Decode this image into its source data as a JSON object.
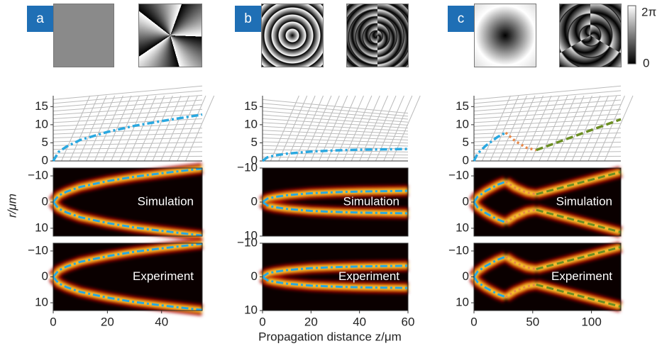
{
  "figure": {
    "panel_labels": [
      "a",
      "b",
      "c"
    ],
    "colorbar_labels": [
      "2π",
      "0"
    ],
    "ylabel": "r/μm",
    "xlabel": "Propagation distance z/μm"
  },
  "chart_data": [
    {
      "type": "line",
      "xlim": [
        0,
        55
      ],
      "xticks": [
        0,
        20,
        40
      ],
      "ylim": [
        0,
        18
      ],
      "yticks": [
        0,
        5,
        10,
        15
      ],
      "series": [
        {
          "color": "#2aa8e0",
          "x": [
            0,
            2,
            5,
            10,
            20,
            30,
            40,
            55
          ],
          "values": [
            0,
            2.5,
            4,
            5.8,
            8,
            9.7,
            11,
            12.8
          ]
        }
      ],
      "heatmaps": [
        {
          "annotation": "Simulation",
          "ylim": [
            -13,
            13
          ],
          "yticks": [
            {
              "value": -10,
              "label": "−10"
            },
            0,
            10
          ]
        },
        {
          "annotation": "Experiment",
          "ylim": [
            -13,
            13
          ],
          "yticks": [
            {
              "value": -10,
              "label": "−10"
            },
            0,
            10
          ]
        }
      ]
    },
    {
      "type": "line",
      "xlim": [
        0,
        60
      ],
      "xticks": [
        0,
        20,
        40,
        60
      ],
      "ylim": [
        0,
        18
      ],
      "yticks": [
        0,
        5,
        10,
        15
      ],
      "series": [
        {
          "color": "#2aa8e0",
          "x": [
            0,
            2,
            5,
            10,
            20,
            30,
            40,
            50,
            60
          ],
          "values": [
            0,
            1,
            1.5,
            2,
            2.6,
            2.9,
            3.1,
            3.2,
            3.3
          ]
        }
      ],
      "heatmaps": [
        {
          "annotation": "Simulation",
          "ylim": [
            -10,
            10
          ],
          "yticks": [
            {
              "value": -10,
              "label": "−10"
            },
            0,
            10
          ]
        },
        {
          "annotation": "Experiment",
          "ylim": [
            -10,
            10
          ],
          "yticks": [
            {
              "value": -10,
              "label": "−10"
            },
            0,
            10
          ]
        }
      ]
    },
    {
      "type": "line",
      "xlim": [
        0,
        125
      ],
      "xticks": [
        0,
        50,
        100
      ],
      "ylim": [
        0,
        18
      ],
      "yticks": [
        0,
        5,
        10,
        15
      ],
      "series": [
        {
          "color": "#2aa8e0",
          "x": [
            0,
            3,
            10,
            20,
            27
          ],
          "values": [
            0,
            2,
            4.2,
            6.6,
            7.8
          ]
        },
        {
          "color": "#e8894a",
          "x": [
            27,
            35,
            45,
            53
          ],
          "values": [
            7.8,
            5.5,
            3.6,
            3
          ]
        },
        {
          "color": "#6b8e23",
          "x": [
            53,
            125
          ],
          "values": [
            3,
            11.5
          ]
        }
      ],
      "heatmaps": [
        {
          "annotation": "Simulation",
          "ylim": [
            -13,
            13
          ],
          "yticks": [
            {
              "value": -10,
              "label": "−10"
            },
            0,
            10
          ]
        },
        {
          "annotation": "Experiment",
          "ylim": [
            -13,
            13
          ],
          "yticks": [
            {
              "value": -10,
              "label": "−10"
            },
            0,
            10
          ]
        }
      ]
    }
  ]
}
